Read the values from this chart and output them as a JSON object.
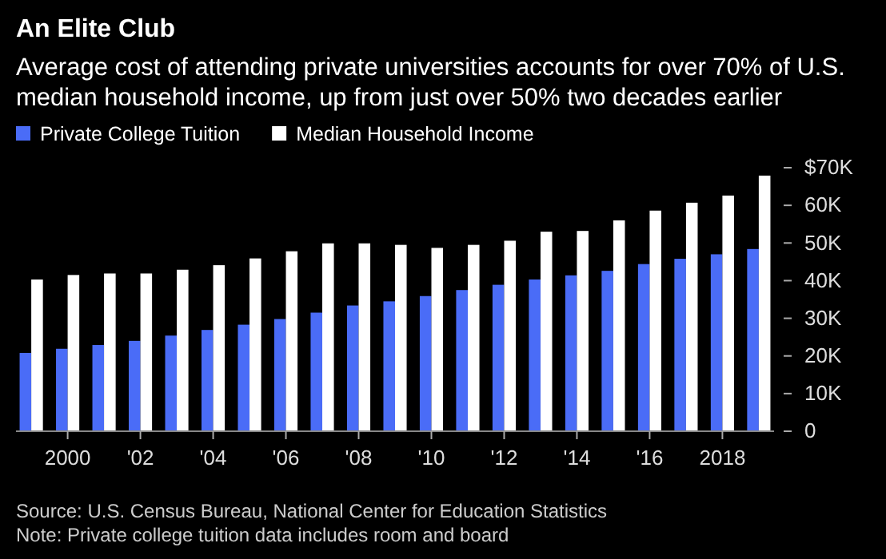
{
  "chart_data": {
    "type": "bar",
    "title": "An Elite Club",
    "subtitle": "Average cost of attending private universities accounts for over 70% of U.S. median household income, up from just over 50% two decades earlier",
    "categories": [
      null,
      "2000",
      null,
      "'02",
      null,
      "'04",
      null,
      "'06",
      null,
      "'08",
      null,
      "'10",
      null,
      "'12",
      null,
      "'14",
      null,
      "'16",
      null,
      "2018",
      null
    ],
    "series": [
      {
        "name": "Private College Tuition",
        "color": "#4a6cf7",
        "values": [
          20.8,
          21.9,
          22.9,
          24.0,
          25.4,
          26.9,
          28.3,
          29.8,
          31.5,
          33.4,
          34.5,
          35.9,
          37.5,
          38.9,
          40.3,
          41.4,
          42.6,
          44.4,
          45.8,
          47.0,
          48.4
        ]
      },
      {
        "name": "Median Household Income",
        "color": "#ffffff",
        "values": [
          40.3,
          41.5,
          41.9,
          41.9,
          42.9,
          44.1,
          45.9,
          47.8,
          49.9,
          49.9,
          49.5,
          48.7,
          49.5,
          50.6,
          53.0,
          53.2,
          56.0,
          58.6,
          60.7,
          62.6,
          67.9
        ]
      }
    ],
    "ylim": [
      0,
      70
    ],
    "yticks": [
      {
        "value": 0,
        "label": "0"
      },
      {
        "value": 10,
        "label": "10K"
      },
      {
        "value": 20,
        "label": "20K"
      },
      {
        "value": 30,
        "label": "30K"
      },
      {
        "value": 40,
        "label": "40K"
      },
      {
        "value": 50,
        "label": "50K"
      },
      {
        "value": 60,
        "label": "60K"
      },
      {
        "value": 70,
        "label": "$70K"
      }
    ],
    "legend": "top left",
    "annotations": [
      "Source: U.S. Census Bureau, National Center for Education Statistics",
      "Note: Private college tuition data includes room and board"
    ]
  }
}
